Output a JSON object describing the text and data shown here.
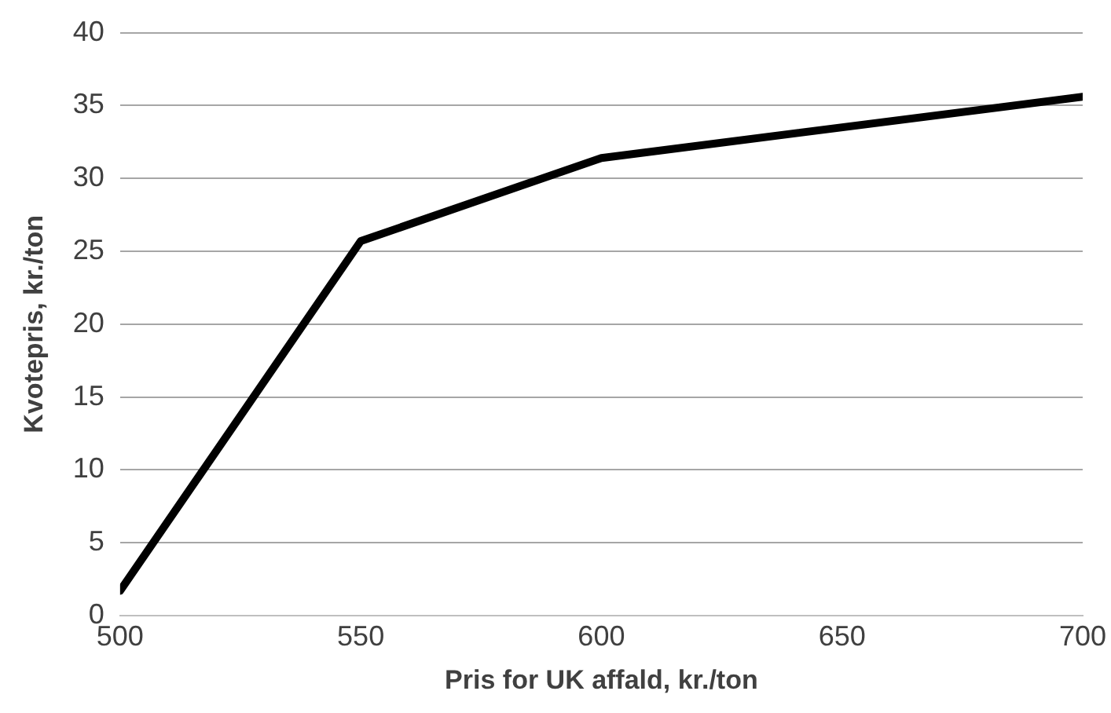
{
  "chart_data": {
    "type": "line",
    "xlabel": "Pris for UK affald, kr./ton",
    "ylabel": "Kvotepris, kr./ton",
    "x": [
      500,
      550,
      600,
      700
    ],
    "series": [
      {
        "color": "#000000",
        "values": [
          1.7,
          25.7,
          31.4,
          35.6
        ]
      }
    ],
    "xlim": [
      500,
      700
    ],
    "xticks": [
      500,
      550,
      600,
      650,
      700
    ],
    "ylim": [
      0,
      40
    ],
    "yticks": [
      0,
      5,
      10,
      15,
      20,
      25,
      30,
      35,
      40
    ],
    "grid": "y",
    "legend": false,
    "marker": "none",
    "line_style": "solid"
  }
}
